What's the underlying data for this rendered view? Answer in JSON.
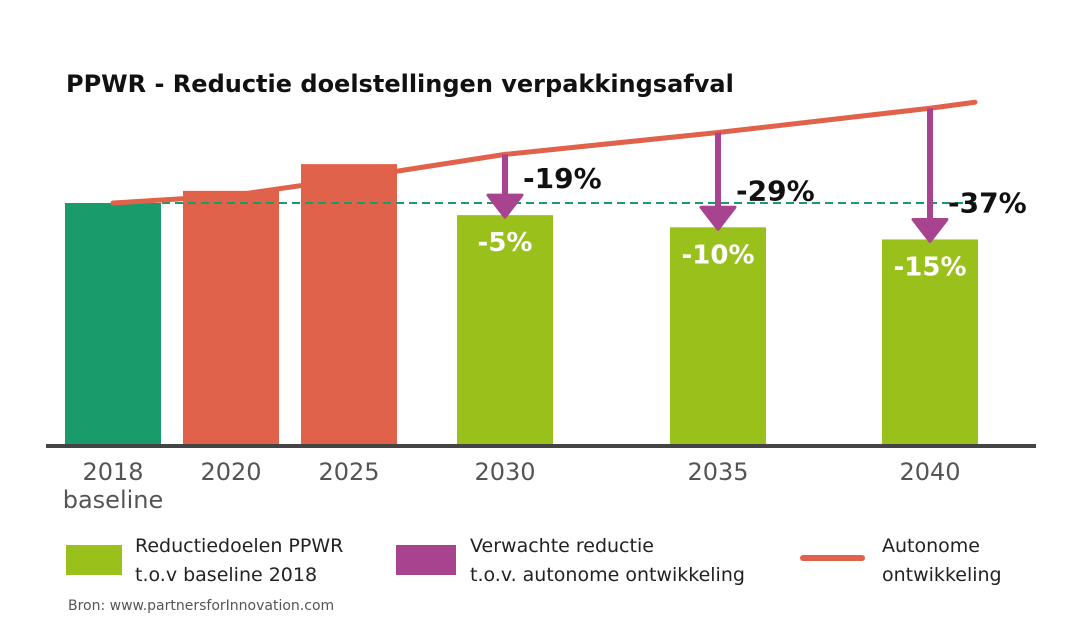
{
  "chart_data": {
    "type": "bar",
    "title": "PPWR - Reductie doelstellingen verpakkingsafval",
    "categories": [
      "2018",
      "2020",
      "2025",
      "2030",
      "2035",
      "2040"
    ],
    "category_sublabels": [
      "baseline",
      "",
      "",
      "",
      "",
      ""
    ],
    "bars": [
      {
        "x": "2018",
        "value": 100,
        "kind": "baseline",
        "label": ""
      },
      {
        "x": "2020",
        "value": 105,
        "kind": "historic",
        "label": ""
      },
      {
        "x": "2025",
        "value": 116,
        "kind": "historic",
        "label": ""
      },
      {
        "x": "2030",
        "value": 95,
        "kind": "target",
        "label": "-5%"
      },
      {
        "x": "2035",
        "value": 90,
        "kind": "target",
        "label": "-10%"
      },
      {
        "x": "2040",
        "value": 85,
        "kind": "target",
        "label": "-15%"
      }
    ],
    "autonomous_line": {
      "name": "Autonome ontwikkeling",
      "x": [
        "2018",
        "2020",
        "2025",
        "2030",
        "2035",
        "2040"
      ],
      "values": [
        100,
        103,
        110,
        120,
        129,
        139
      ]
    },
    "expected_reduction": [
      {
        "x": "2030",
        "label": "-19%"
      },
      {
        "x": "2035",
        "label": "-29%"
      },
      {
        "x": "2040",
        "label": "-37%"
      }
    ],
    "baseline_reference": 100,
    "ylim": [
      0,
      145
    ],
    "grid": false,
    "legend_position": "bottom",
    "legend": [
      {
        "key": "target",
        "lines": [
          "Reductiedoelen PPWR",
          "t.o.v baseline 2018"
        ]
      },
      {
        "key": "expected",
        "lines": [
          "Verwachte reductie",
          "t.o.v. autonome ontwikkeling"
        ]
      },
      {
        "key": "autonomous",
        "lines": [
          "Autonome",
          "ontwikkeling"
        ]
      }
    ],
    "source": "Bron: www.partnersforInnovation.com",
    "colors": {
      "baseline": "#1a9b6c",
      "historic": "#e0624a",
      "target": "#99c01b",
      "line": "#e0624a",
      "arrow": "#a8448f",
      "dashed": "#1a9b6c",
      "axis": "#444444"
    }
  }
}
